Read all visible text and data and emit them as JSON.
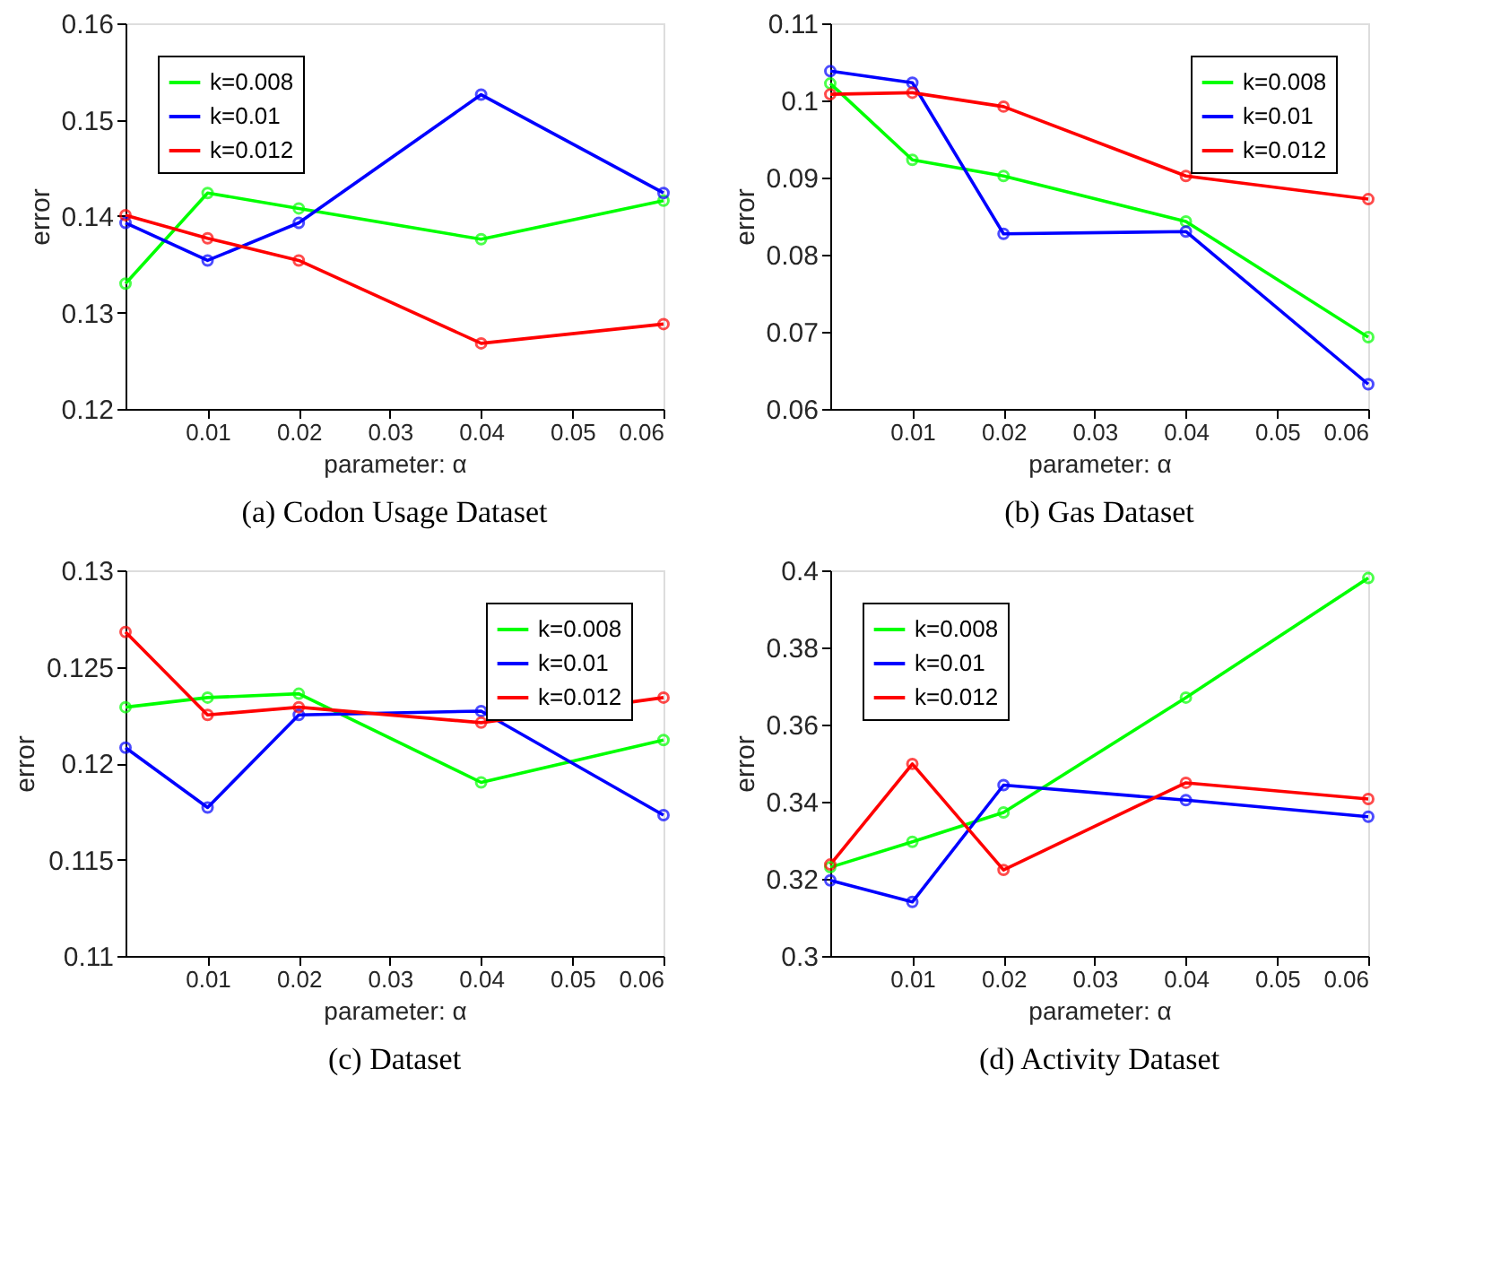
{
  "chart_data": [
    {
      "type": "line",
      "title": "(a) Codon Usage Dataset",
      "xlabel": "parameter: α",
      "ylabel": "error",
      "x": [
        0.001,
        0.01,
        0.02,
        0.04,
        0.06
      ],
      "xlim": [
        0.001,
        0.06
      ],
      "xticks": [
        0.01,
        0.02,
        0.03,
        0.04,
        0.05,
        0.06
      ],
      "ylim": [
        0.12,
        0.16
      ],
      "yticks": [
        0.12,
        0.13,
        0.14,
        0.15,
        0.16
      ],
      "legend": "top left",
      "grid": false,
      "marker": "circle",
      "line_style": "solid",
      "series": [
        {
          "name": "k=0.008",
          "color": "#00ff00",
          "values": [
            0.133,
            0.1424,
            0.1408,
            0.1376,
            0.1416
          ]
        },
        {
          "name": "k=0.01",
          "color": "#0000ff",
          "values": [
            0.1393,
            0.1354,
            0.1393,
            0.1526,
            0.1424
          ]
        },
        {
          "name": "k=0.012",
          "color": "#ff0000",
          "values": [
            0.1401,
            0.1377,
            0.1354,
            0.1268,
            0.1288
          ]
        }
      ]
    },
    {
      "type": "line",
      "title": "(b) Gas Dataset",
      "xlabel": "parameter: α",
      "ylabel": "error",
      "x": [
        0.001,
        0.01,
        0.02,
        0.04,
        0.06
      ],
      "xlim": [
        0.001,
        0.06
      ],
      "xticks": [
        0.01,
        0.02,
        0.03,
        0.04,
        0.05,
        0.06
      ],
      "ylim": [
        0.06,
        0.11
      ],
      "yticks": [
        0.06,
        0.07,
        0.08,
        0.09,
        0.1,
        0.11
      ],
      "legend": "top right",
      "grid": false,
      "marker": "circle",
      "line_style": "solid",
      "series": [
        {
          "name": "k=0.008",
          "color": "#00ff00",
          "values": [
            0.1022,
            0.0923,
            0.0902,
            0.0843,
            0.0693
          ]
        },
        {
          "name": "k=0.01",
          "color": "#0000ff",
          "values": [
            0.1038,
            0.1023,
            0.0827,
            0.083,
            0.0632
          ]
        },
        {
          "name": "k=0.012",
          "color": "#ff0000",
          "values": [
            0.1008,
            0.101,
            0.0992,
            0.0902,
            0.0872
          ]
        }
      ]
    },
    {
      "type": "line",
      "title": "(c) Dataset",
      "xlabel": "parameter: α",
      "ylabel": "error",
      "x": [
        0.001,
        0.01,
        0.02,
        0.04,
        0.06
      ],
      "xlim": [
        0.001,
        0.06
      ],
      "xticks": [
        0.01,
        0.02,
        0.03,
        0.04,
        0.05,
        0.06
      ],
      "ylim": [
        0.11,
        0.13
      ],
      "yticks": [
        0.11,
        0.115,
        0.12,
        0.125,
        0.13
      ],
      "legend": "top right",
      "grid": false,
      "marker": "circle",
      "line_style": "solid",
      "series": [
        {
          "name": "k=0.008",
          "color": "#00ff00",
          "values": [
            0.1229,
            0.1234,
            0.1236,
            0.119,
            0.1212
          ]
        },
        {
          "name": "k=0.01",
          "color": "#0000ff",
          "values": [
            0.1208,
            0.1177,
            0.1225,
            0.1227,
            0.1173
          ]
        },
        {
          "name": "k=0.012",
          "color": "#ff0000",
          "values": [
            0.1268,
            0.1225,
            0.1229,
            0.1221,
            0.1234
          ]
        }
      ]
    },
    {
      "type": "line",
      "title": "(d) Activity Dataset",
      "xlabel": "parameter: α",
      "ylabel": "error",
      "x": [
        0.001,
        0.01,
        0.02,
        0.04,
        0.06
      ],
      "xlim": [
        0.001,
        0.06
      ],
      "xticks": [
        0.01,
        0.02,
        0.03,
        0.04,
        0.05,
        0.06
      ],
      "ylim": [
        0.3,
        0.4
      ],
      "yticks": [
        0.3,
        0.32,
        0.34,
        0.36,
        0.38,
        0.4
      ],
      "legend": "top left",
      "grid": false,
      "marker": "circle",
      "line_style": "solid",
      "series": [
        {
          "name": "k=0.008",
          "color": "#00ff00",
          "values": [
            0.323,
            0.3296,
            0.3372,
            0.367,
            0.398
          ]
        },
        {
          "name": "k=0.01",
          "color": "#0000ff",
          "values": [
            0.3196,
            0.314,
            0.3443,
            0.3404,
            0.3361
          ]
        },
        {
          "name": "k=0.012",
          "color": "#ff0000",
          "values": [
            0.3237,
            0.3498,
            0.3223,
            0.3449,
            0.3407
          ]
        }
      ]
    }
  ]
}
